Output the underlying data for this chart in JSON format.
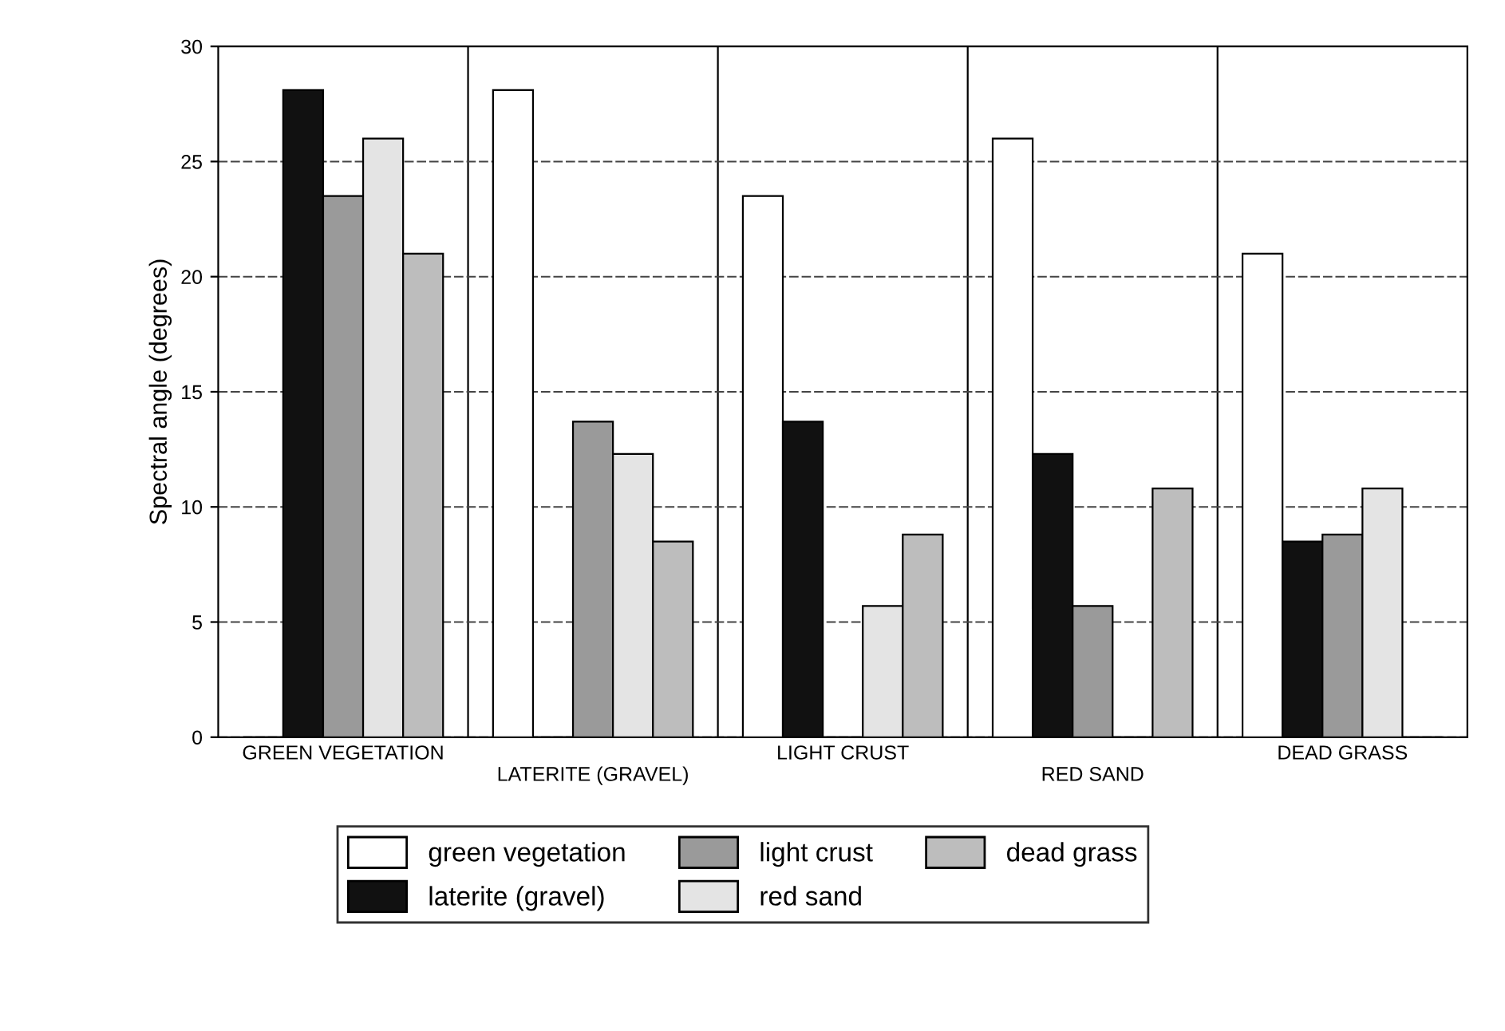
{
  "chart_data": {
    "type": "bar",
    "ylabel": "Spectral angle (degrees)",
    "categories": [
      "GREEN VEGETATION",
      "LATERITE (GRAVEL)",
      "LIGHT CRUST",
      "RED SAND",
      "DEAD GRASS"
    ],
    "series": [
      {
        "name": "green vegetation",
        "color": "#ffffff",
        "values": [
          0,
          28.1,
          23.5,
          26,
          21
        ]
      },
      {
        "name": "laterite (gravel)",
        "color": "#111111",
        "values": [
          28.1,
          0,
          13.7,
          12.3,
          8.5
        ]
      },
      {
        "name": "light crust",
        "color": "#9a9a9a",
        "values": [
          23.5,
          13.7,
          0,
          5.7,
          8.8
        ]
      },
      {
        "name": "red sand",
        "color": "#e4e4e4",
        "values": [
          26,
          12.3,
          5.7,
          0,
          10.8
        ]
      },
      {
        "name": "dead grass",
        "color": "#bdbdbd",
        "values": [
          21,
          8.5,
          8.8,
          10.8,
          0
        ]
      }
    ],
    "ylim": [
      0,
      30
    ],
    "yticks": [
      0,
      5,
      10,
      15,
      20,
      25,
      30
    ],
    "grid": true,
    "legend": "bottom"
  }
}
